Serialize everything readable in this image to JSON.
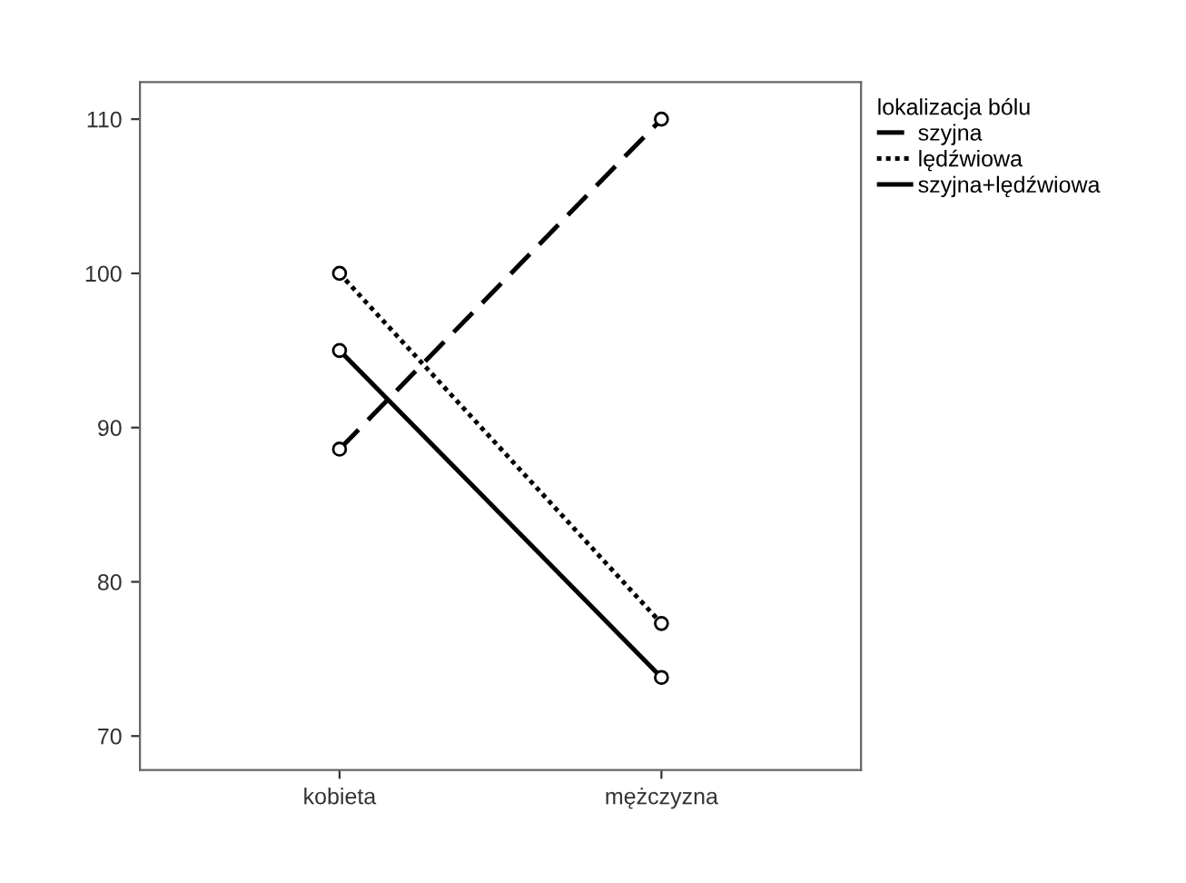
{
  "chart_data": {
    "type": "line",
    "legend_title": "lokalizacja bólu",
    "categories": [
      "kobieta",
      "mężczyzna"
    ],
    "series": [
      {
        "name": "szyjna",
        "color": "#000000",
        "line_style": "dashed",
        "values": [
          88.6,
          110
        ]
      },
      {
        "name": "lędźwiowa",
        "color": "#000000",
        "line_style": "dotted",
        "values": [
          100,
          77.3
        ]
      },
      {
        "name": "szyjna+lędźwiowa",
        "color": "#000000",
        "line_style": "solid",
        "values": [
          95,
          73.8
        ]
      }
    ],
    "ylim": [
      67.8,
      112.4
    ],
    "yticks": [
      70,
      80,
      90,
      100,
      110
    ],
    "marker": "circle",
    "grid": false,
    "legend": "top right"
  }
}
